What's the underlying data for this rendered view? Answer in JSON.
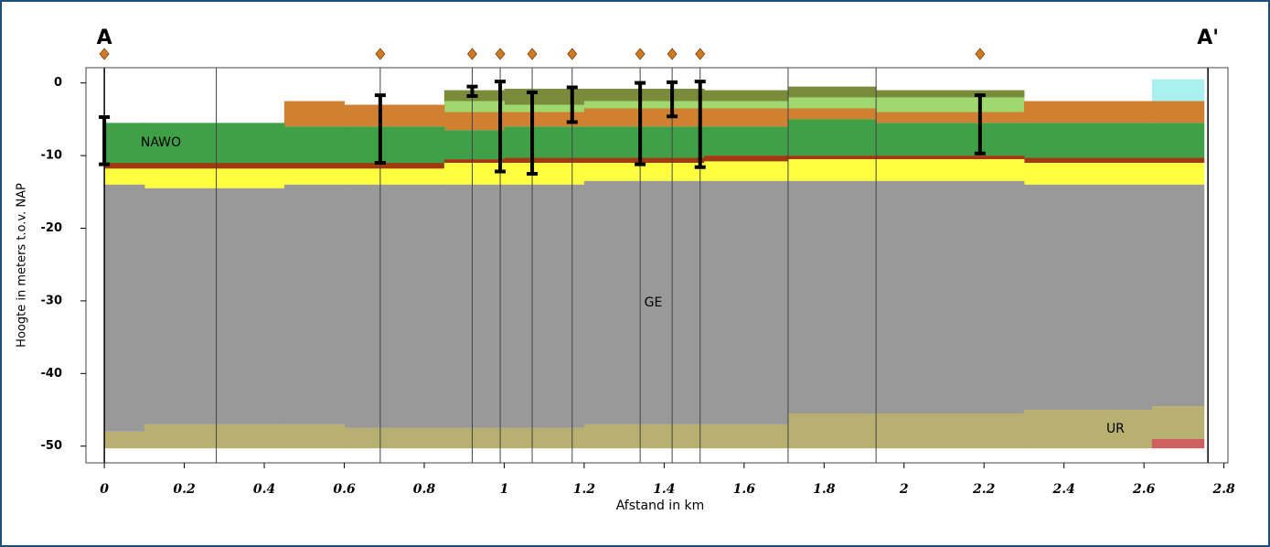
{
  "chart_data": {
    "type": "cross-section",
    "x_label": "Afstand in km",
    "y_label": "Hoogte in meters t.o.v. NAP",
    "start_label": "A",
    "end_label": "A'",
    "xlim": [
      -0.046,
      2.81
    ],
    "ylim": [
      -52.3,
      2.1
    ],
    "xticks": [
      0,
      0.2,
      0.4,
      0.6,
      0.8,
      1,
      1.2,
      1.4,
      1.6,
      1.8,
      2,
      2.2,
      2.4,
      2.6,
      2.8
    ],
    "yticks": [
      0,
      -10,
      -20,
      -30,
      -40,
      -50
    ],
    "segments": [
      0,
      0.1,
      0.45,
      0.6,
      0.85,
      1.0,
      1.2,
      1.5,
      1.71,
      1.93,
      2.3,
      2.62,
      2.75
    ],
    "base": -50.3,
    "layers": [
      {
        "color": "#aaf0f0",
        "top": [
          null,
          null,
          null,
          null,
          null,
          null,
          null,
          null,
          null,
          null,
          null,
          0.5
        ]
      },
      {
        "color": "#7a8c3c",
        "top": [
          null,
          null,
          null,
          null,
          -1,
          -0.8,
          -0.8,
          -1,
          -0.5,
          -1,
          null,
          null
        ]
      },
      {
        "color": "#a0d870",
        "top": [
          null,
          null,
          null,
          null,
          -2.5,
          -3,
          -2.5,
          -2.5,
          -2,
          -2,
          null,
          null
        ]
      },
      {
        "color": "#d08030",
        "top": [
          null,
          null,
          -2.5,
          -3,
          -4,
          -4,
          -3.5,
          -3.5,
          -3.5,
          -4,
          -2.5,
          -2.5
        ]
      },
      {
        "color": "#40a048",
        "label": "NAWO",
        "top": [
          -5.5,
          -5.5,
          -6,
          -6,
          -6.5,
          -6,
          -6,
          -6,
          -5,
          -5.5,
          -5.5,
          -5.5
        ]
      },
      {
        "color": "#a03a10",
        "top": [
          -11,
          -11,
          -11,
          -11,
          -10.5,
          -10.3,
          -10.3,
          -10,
          -10,
          -10,
          -10.3,
          -10.3
        ]
      },
      {
        "color": "#ffff40",
        "top": [
          -11.8,
          -11.8,
          -11.8,
          -11.8,
          -11,
          -11,
          -11,
          -10.8,
          -10.5,
          -10.5,
          -11,
          -11
        ]
      },
      {
        "color": "#999999",
        "label": "GE",
        "top": [
          -14,
          -14.5,
          -14,
          -14,
          -14,
          -14,
          -13.5,
          -13.5,
          -13.5,
          -13.5,
          -14,
          -14
        ]
      },
      {
        "color": "#b8b070",
        "label": "UR",
        "top": [
          -48,
          -47,
          -47,
          -47.5,
          -47.5,
          -47.5,
          -47,
          -47,
          -45.5,
          -45.5,
          -45,
          -44.5
        ]
      },
      {
        "color": "#d06060",
        "top": [
          null,
          null,
          null,
          null,
          null,
          null,
          null,
          null,
          null,
          null,
          null,
          -49
        ]
      }
    ],
    "section_lines": [
      0,
      0.28,
      0.69,
      0.92,
      0.99,
      1.07,
      1.17,
      1.34,
      1.42,
      1.49,
      1.71,
      1.93,
      2.76
    ],
    "boreholes": {
      "color": "#d07a20",
      "x": [
        0,
        0.69,
        0.92,
        0.99,
        1.07,
        1.17,
        1.34,
        1.42,
        1.49,
        2.19
      ],
      "top": [
        -4.7,
        -1.7,
        -0.5,
        0.2,
        -1.3,
        -0.6,
        0,
        0.1,
        0.2,
        -1.7
      ],
      "bottom": [
        -11.2,
        -11,
        -1.8,
        -12.2,
        -12.5,
        -5.4,
        -11.2,
        -4.6,
        -11.6,
        -9.7
      ]
    }
  }
}
